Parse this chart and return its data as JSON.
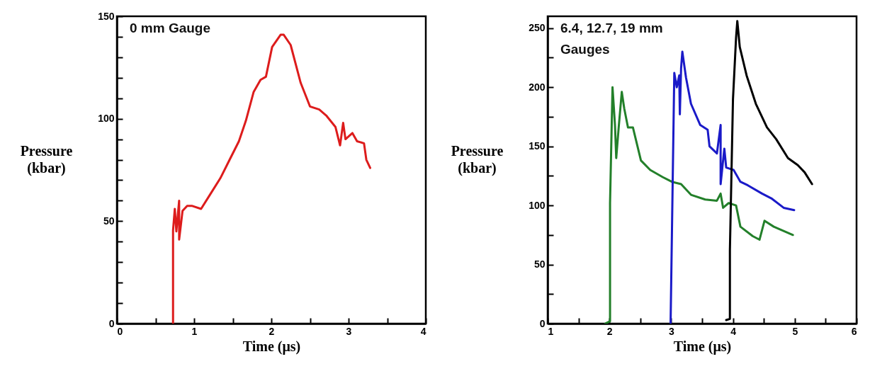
{
  "chart_data": [
    {
      "type": "line",
      "xlabel": "Time  (μs)",
      "ylabel": "Pressure\n(kbar)",
      "annotations": [
        "0  mm  Gauge"
      ],
      "xlim": [
        0,
        4
      ],
      "ylim": [
        0,
        150
      ],
      "xticks": [
        0,
        {
          "value": 0.5,
          "label": null
        },
        1,
        {
          "value": 1.5,
          "label": null
        },
        2,
        {
          "value": 2.5,
          "label": null
        },
        3,
        {
          "value": 3.5,
          "label": null
        },
        4
      ],
      "yticks": [
        0,
        {
          "value": 10,
          "label": null
        },
        {
          "value": 20,
          "label": null
        },
        {
          "value": 30,
          "label": null
        },
        {
          "value": 40,
          "label": null
        },
        50,
        {
          "value": 60,
          "label": null
        },
        {
          "value": 70,
          "label": null
        },
        {
          "value": 80,
          "label": null
        },
        {
          "value": 90,
          "label": null
        },
        100,
        {
          "value": 110,
          "label": null
        },
        {
          "value": 120,
          "label": null
        },
        {
          "value": 130,
          "label": null
        },
        {
          "value": 140,
          "label": null
        },
        150
      ],
      "series": [
        {
          "color": "#dd1c1c",
          "x": [
            0.727,
            0.727,
            0.75,
            0.77,
            0.806,
            0.806,
            0.85,
            0.91,
            0.97,
            1.09,
            1.19,
            1.34,
            1.46,
            1.58,
            1.67,
            1.77,
            1.86,
            1.93,
            2.01,
            2.12,
            2.16,
            2.25,
            2.38,
            2.5,
            2.62,
            2.71,
            2.83,
            2.89,
            2.93,
            2.96,
            3.05,
            3.11,
            3.2,
            3.23,
            3.28
          ],
          "values": [
            0,
            45.5,
            56,
            45,
            60,
            41,
            55,
            57.5,
            57.5,
            56,
            62,
            71,
            80,
            89,
            99,
            113,
            119,
            120.5,
            135,
            141,
            141,
            136,
            117.5,
            106,
            104.5,
            101.6,
            96,
            87,
            98,
            90,
            93,
            89,
            88,
            80,
            76
          ]
        }
      ]
    },
    {
      "type": "line",
      "xlabel": "Time  (μs)",
      "ylabel": "Pressure\n(kbar)",
      "annotations": [
        "6.4,  12.7,  19 mm\nGauges"
      ],
      "xlim": [
        1,
        6
      ],
      "ylim": [
        0,
        260
      ],
      "xticks": [
        1,
        {
          "value": 1.5,
          "label": null
        },
        2,
        {
          "value": 2.5,
          "label": null
        },
        3,
        {
          "value": 3.5,
          "label": null
        },
        4,
        {
          "value": 4.5,
          "label": null
        },
        5,
        {
          "value": 5.5,
          "label": null
        },
        6
      ],
      "yticks": [
        0,
        {
          "value": 25,
          "label": null
        },
        50,
        {
          "value": 75,
          "label": null
        },
        100,
        {
          "value": 125,
          "label": null
        },
        150,
        {
          "value": 175,
          "label": null
        },
        200,
        {
          "value": 225,
          "label": null
        },
        250
      ],
      "series": [
        {
          "color": "#23802a",
          "x": [
            1.93,
            2.01,
            2.01,
            2.05,
            2.09,
            2.11,
            2.15,
            2.2,
            2.24,
            2.3,
            2.38,
            2.51,
            2.66,
            2.86,
            3.01,
            3.16,
            3.32,
            3.55,
            3.74,
            3.8,
            3.84,
            3.93,
            4.05,
            4.12,
            4.32,
            4.43,
            4.51,
            4.66,
            4.97
          ],
          "values": [
            0,
            2,
            102,
            200,
            168,
            140,
            166,
            196,
            182,
            166,
            166,
            138,
            130,
            124,
            120,
            118,
            109,
            105,
            104,
            110,
            98,
            102,
            100,
            82,
            74,
            71,
            87,
            82,
            75
          ]
        },
        {
          "color": "#1a1ac8",
          "x": [
            2.99,
            3.05,
            3.09,
            3.13,
            3.14,
            3.16,
            3.18,
            3.24,
            3.32,
            3.47,
            3.59,
            3.62,
            3.74,
            3.8,
            3.8,
            3.86,
            3.89,
            4.01,
            4.12,
            4.24,
            4.47,
            4.62,
            4.82,
            4.99
          ],
          "values": [
            0,
            212,
            200,
            210,
            177,
            216,
            230,
            208,
            186,
            168,
            164,
            150,
            144,
            168,
            118,
            148,
            132,
            130,
            120,
            117,
            110,
            106,
            98,
            96
          ]
        },
        {
          "color": "#000000",
          "x": [
            3.89,
            3.95,
            3.95,
            4.0,
            4.05,
            4.07,
            4.11,
            4.22,
            4.37,
            4.55,
            4.7,
            4.89,
            5.05,
            5.16,
            5.28
          ],
          "values": [
            3,
            4,
            62,
            190,
            242,
            256,
            234,
            210,
            186,
            166,
            156,
            140,
            134,
            128,
            118
          ]
        }
      ]
    }
  ]
}
